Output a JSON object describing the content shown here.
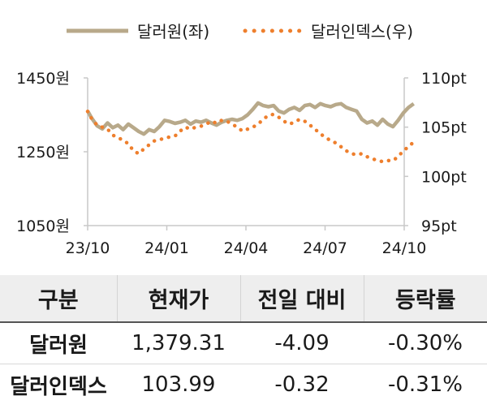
{
  "chart_data": {
    "type": "line",
    "x_ticks": [
      "23/10",
      "24/01",
      "24/04",
      "24/07",
      "24/10"
    ],
    "series": [
      {
        "name": "달러원(좌)",
        "axis": "left",
        "style": "solid",
        "color": "#b8a98a",
        "x": [
          "2023-10-01",
          "2023-10-06",
          "2023-10-12",
          "2023-10-18",
          "2023-10-24",
          "2023-10-30",
          "2023-11-05",
          "2023-11-11",
          "2023-11-17",
          "2023-11-23",
          "2023-11-29",
          "2023-12-05",
          "2023-12-11",
          "2023-12-17",
          "2023-12-23",
          "2023-12-29",
          "2024-01-04",
          "2024-01-10",
          "2024-01-16",
          "2024-01-22",
          "2024-01-28",
          "2024-02-03",
          "2024-02-09",
          "2024-02-15",
          "2024-02-21",
          "2024-02-27",
          "2024-03-04",
          "2024-03-10",
          "2024-03-16",
          "2024-03-22",
          "2024-03-28",
          "2024-04-03",
          "2024-04-09",
          "2024-04-15",
          "2024-04-21",
          "2024-04-27",
          "2024-05-03",
          "2024-05-09",
          "2024-05-15",
          "2024-05-21",
          "2024-05-27",
          "2024-06-02",
          "2024-06-08",
          "2024-06-14",
          "2024-06-20",
          "2024-06-26",
          "2024-07-02",
          "2024-07-08",
          "2024-07-14",
          "2024-07-20",
          "2024-07-26",
          "2024-08-01",
          "2024-08-07",
          "2024-08-13",
          "2024-08-19",
          "2024-08-25",
          "2024-08-31",
          "2024-09-06",
          "2024-09-12",
          "2024-09-18",
          "2024-09-24",
          "2024-09-30",
          "2024-10-06",
          "2024-10-12"
        ],
        "values": [
          1360,
          1340,
          1320,
          1312,
          1328,
          1315,
          1322,
          1310,
          1325,
          1315,
          1305,
          1298,
          1310,
          1305,
          1318,
          1335,
          1332,
          1327,
          1330,
          1335,
          1325,
          1333,
          1330,
          1335,
          1328,
          1322,
          1330,
          1335,
          1338,
          1335,
          1340,
          1350,
          1365,
          1382,
          1375,
          1372,
          1375,
          1360,
          1355,
          1365,
          1370,
          1362,
          1375,
          1378,
          1370,
          1380,
          1375,
          1372,
          1378,
          1380,
          1370,
          1365,
          1360,
          1338,
          1328,
          1333,
          1322,
          1338,
          1325,
          1318,
          1335,
          1355,
          1370,
          1380
        ]
      },
      {
        "name": "달러인덱스(우)",
        "axis": "right",
        "style": "dotted",
        "color": "#ee7f2d",
        "x": [
          "2023-10-01",
          "2023-10-06",
          "2023-10-12",
          "2023-10-18",
          "2023-10-24",
          "2023-10-30",
          "2023-11-05",
          "2023-11-11",
          "2023-11-17",
          "2023-11-23",
          "2023-11-29",
          "2023-12-05",
          "2023-12-11",
          "2023-12-17",
          "2023-12-23",
          "2023-12-29",
          "2024-01-04",
          "2024-01-10",
          "2024-01-16",
          "2024-01-22",
          "2024-01-28",
          "2024-02-03",
          "2024-02-09",
          "2024-02-15",
          "2024-02-21",
          "2024-02-27",
          "2024-03-04",
          "2024-03-10",
          "2024-03-16",
          "2024-03-22",
          "2024-03-28",
          "2024-04-03",
          "2024-04-09",
          "2024-04-15",
          "2024-04-21",
          "2024-04-27",
          "2024-05-03",
          "2024-05-09",
          "2024-05-15",
          "2024-05-21",
          "2024-05-27",
          "2024-06-02",
          "2024-06-08",
          "2024-06-14",
          "2024-06-20",
          "2024-06-26",
          "2024-07-02",
          "2024-07-08",
          "2024-07-14",
          "2024-07-20",
          "2024-07-26",
          "2024-08-01",
          "2024-08-07",
          "2024-08-13",
          "2024-08-19",
          "2024-08-25",
          "2024-08-31",
          "2024-09-06",
          "2024-09-12",
          "2024-09-18",
          "2024-09-24",
          "2024-09-30",
          "2024-10-06",
          "2024-10-12"
        ],
        "values": [
          106.6,
          105.8,
          105.2,
          105.0,
          104.8,
          104.2,
          103.9,
          103.7,
          103.3,
          102.6,
          102.3,
          102.8,
          103.2,
          103.6,
          103.7,
          103.9,
          104.0,
          104.1,
          104.6,
          105.0,
          104.8,
          105.0,
          105.1,
          105.3,
          105.6,
          105.4,
          105.7,
          105.6,
          105.3,
          105.0,
          104.6,
          104.8,
          105.0,
          105.3,
          105.8,
          106.2,
          106.3,
          106.0,
          105.6,
          105.3,
          105.5,
          105.8,
          105.6,
          105.2,
          104.8,
          104.3,
          104.0,
          103.6,
          103.4,
          103.0,
          102.6,
          102.3,
          102.2,
          102.3,
          102.0,
          101.8,
          101.6,
          101.5,
          101.6,
          101.6,
          102.0,
          102.6,
          103.0,
          103.5
        ]
      }
    ],
    "y_left": {
      "ticks": [
        "1450원",
        "1250원",
        "1050원"
      ],
      "range": [
        1050,
        1450
      ]
    },
    "y_right": {
      "ticks": [
        "110pt",
        "105pt",
        "100pt",
        "95pt"
      ],
      "range": [
        95,
        110
      ]
    },
    "legend_position": "top",
    "grid": false
  },
  "table": {
    "headers": [
      "구분",
      "현재가",
      "전일 대비",
      "등락률"
    ],
    "rows": [
      [
        "달러원",
        "1,379.31",
        "-4.09",
        "-0.30%"
      ],
      [
        "달러인덱스",
        "103.99",
        "-0.32",
        "-0.31%"
      ]
    ]
  }
}
